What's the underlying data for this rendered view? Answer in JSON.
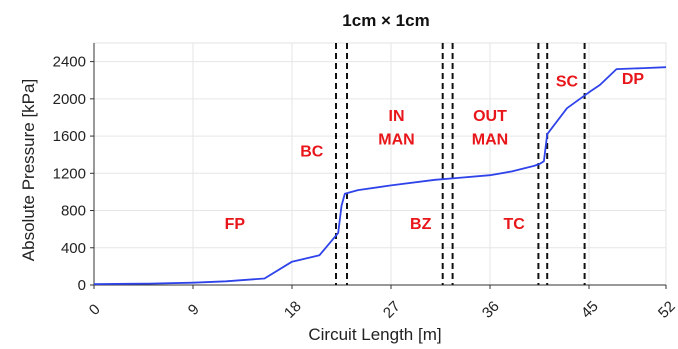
{
  "chart_data": {
    "type": "line",
    "title": "1cm × 1cm",
    "xlabel": "Circuit Length [m]",
    "ylabel": "Absolute Pressure [kPa]",
    "xlim": [
      0,
      52
    ],
    "ylim": [
      0,
      2600
    ],
    "x_ticks": [
      0,
      9,
      18,
      27,
      36,
      45,
      52
    ],
    "y_ticks": [
      0,
      400,
      800,
      1200,
      1600,
      2000,
      2400
    ],
    "grid": true,
    "series": [
      {
        "color": "#2f43ea",
        "x": [
          0,
          5,
          9,
          12,
          15.5,
          18,
          20.5,
          22.2,
          22.5,
          22.8,
          24,
          27,
          31,
          33,
          36,
          38,
          40,
          40.5,
          40.9,
          41.2,
          43,
          45,
          46,
          47.5,
          50,
          52
        ],
        "y": [
          10,
          15,
          25,
          40,
          70,
          250,
          320,
          560,
          850,
          980,
          1020,
          1070,
          1130,
          1150,
          1180,
          1220,
          1280,
          1300,
          1330,
          1620,
          1900,
          2070,
          2150,
          2320,
          2330,
          2340
        ]
      }
    ],
    "dividers": [
      {
        "pair": [
          22.0,
          23.0
        ]
      },
      {
        "pair": [
          31.7,
          32.6
        ]
      },
      {
        "pair": [
          40.4,
          41.2
        ]
      },
      {
        "pair": [
          44.6
        ]
      }
    ],
    "region_labels": [
      {
        "text": "FP",
        "x": 12.8,
        "y": 600
      },
      {
        "text": "BC",
        "x": 19.8,
        "y": 1380
      },
      {
        "text": "IN",
        "x": 27.5,
        "y": 1760
      },
      {
        "text": "MAN",
        "x": 27.5,
        "y": 1510
      },
      {
        "text": "BZ",
        "x": 29.7,
        "y": 600
      },
      {
        "text": "OUT",
        "x": 36.0,
        "y": 1760
      },
      {
        "text": "MAN",
        "x": 36.0,
        "y": 1510
      },
      {
        "text": "TC",
        "x": 38.2,
        "y": 600
      },
      {
        "text": "SC",
        "x": 43.0,
        "y": 2130
      },
      {
        "text": "DP",
        "x": 49.0,
        "y": 2160
      }
    ]
  }
}
